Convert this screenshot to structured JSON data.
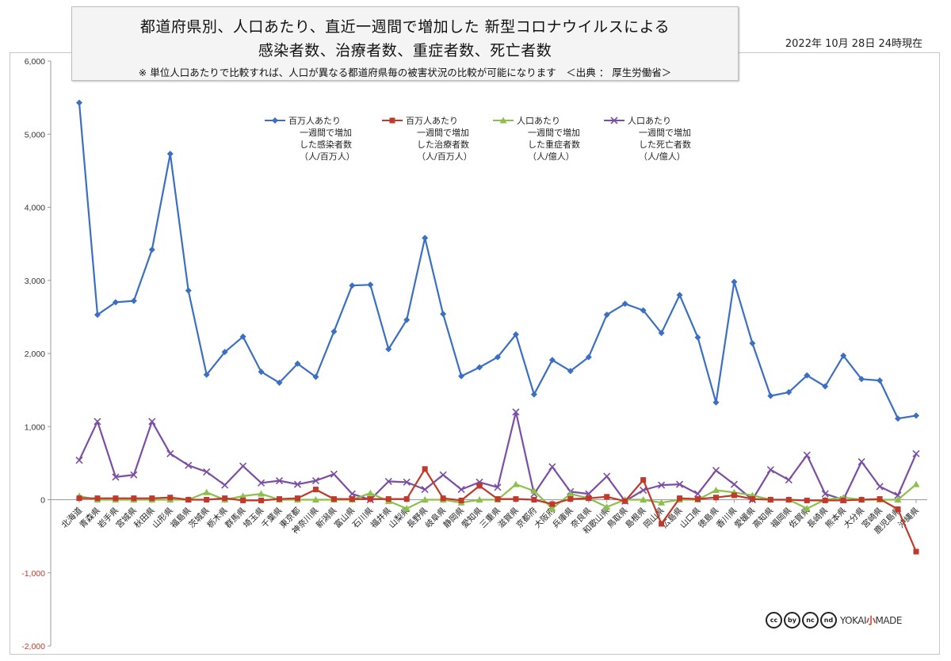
{
  "title": {
    "line1": "都道府県別、人口あたり、直近一週間で増加した 新型コロナウイルスによる",
    "line2": "感染者数、治療者数、重症者数、死亡者数",
    "note": "※ 単位人口あたりで比較すれば、人口が異なる都道府県毎の被害状況の比較が可能になります　＜出典 ： 厚生労働省＞"
  },
  "date_label": "2022年 10月 28日 24時現在",
  "branding": {
    "cc_icons": [
      "cc",
      "by",
      "nc",
      "nd"
    ],
    "brand_left": "YOKAI",
    "brand_mid": "小",
    "brand_right": "MADE"
  },
  "chart_data": {
    "type": "line",
    "y_tick_labels": [
      "6,000",
      "5,000",
      "4,000",
      "3,000",
      "2,000",
      "1,000",
      "0",
      "-1,000",
      "-2,000"
    ],
    "ylim": [
      -2000,
      6000
    ],
    "grid": false,
    "legend_position": "top-center",
    "categories": [
      "北海道",
      "青森県",
      "岩手県",
      "宮城県",
      "秋田県",
      "山形県",
      "福島県",
      "茨城県",
      "栃木県",
      "群馬県",
      "埼玉県",
      "千葉県",
      "東京都",
      "神奈川県",
      "新潟県",
      "富山県",
      "石川県",
      "福井県",
      "山梨県",
      "長野県",
      "岐阜県",
      "静岡県",
      "愛知県",
      "三重県",
      "滋賀県",
      "京都府",
      "大阪府",
      "兵庫県",
      "奈良県",
      "和歌山県",
      "鳥取県",
      "島根県",
      "岡山県",
      "広島県",
      "山口県",
      "徳島県",
      "香川県",
      "愛媛県",
      "高知県",
      "福岡県",
      "佐賀県",
      "長崎県",
      "熊本県",
      "大分県",
      "宮崎県",
      "鹿児島県",
      "沖縄県"
    ],
    "series": [
      {
        "name_lines": [
          "百万人あたり",
          "一週間で増加",
          "した感染者数",
          "（人/百万人）"
        ],
        "color": "#3a6fc4",
        "marker": "diamond",
        "values": [
          5430,
          2530,
          2700,
          2720,
          3420,
          4730,
          2860,
          1710,
          2020,
          2230,
          1750,
          1600,
          1860,
          1680,
          2300,
          2930,
          2940,
          2060,
          2460,
          3580,
          2540,
          1690,
          1810,
          1950,
          2260,
          1440,
          1910,
          1760,
          1950,
          2530,
          2680,
          2590,
          2280,
          2800,
          2220,
          1330,
          2980,
          2140,
          1420,
          1470,
          1700,
          1550,
          1970,
          1650,
          1630,
          1110,
          1150
        ]
      },
      {
        "name_lines": [
          "百万人あたり",
          "一週間で増加",
          "した治療者数",
          "（人/百万人）"
        ],
        "color": "#c0392b",
        "marker": "square",
        "values": [
          20,
          20,
          20,
          20,
          20,
          30,
          0,
          0,
          20,
          -10,
          -10,
          10,
          20,
          140,
          10,
          10,
          10,
          10,
          10,
          420,
          20,
          -10,
          190,
          10,
          10,
          0,
          -60,
          10,
          20,
          40,
          -20,
          270,
          -330,
          20,
          10,
          30,
          60,
          10,
          0,
          0,
          -10,
          -10,
          -10,
          0,
          10,
          -130,
          -710
        ]
      },
      {
        "name_lines": [
          "人口あたり",
          "一週間で増加",
          "した重症者数",
          "（人/億人）"
        ],
        "color": "#8cc04b",
        "marker": "triangle",
        "values": [
          50,
          0,
          0,
          0,
          0,
          0,
          0,
          100,
          0,
          50,
          80,
          0,
          0,
          0,
          0,
          0,
          90,
          -20,
          -120,
          0,
          0,
          -40,
          0,
          0,
          210,
          120,
          -120,
          80,
          20,
          -100,
          0,
          0,
          -40,
          0,
          0,
          130,
          100,
          60,
          0,
          0,
          -120,
          0,
          30,
          0,
          0,
          0,
          210
        ]
      },
      {
        "name_lines": [
          "人口あたり",
          "一週間で増加",
          "した死亡者数",
          "（人/億人）"
        ],
        "color": "#7b4ea3",
        "marker": "cross",
        "values": [
          540,
          1070,
          310,
          340,
          1070,
          630,
          470,
          380,
          200,
          460,
          230,
          260,
          210,
          260,
          350,
          80,
          0,
          250,
          240,
          140,
          340,
          140,
          240,
          170,
          1200,
          80,
          450,
          110,
          80,
          320,
          -20,
          130,
          200,
          210,
          80,
          400,
          210,
          0,
          410,
          270,
          610,
          80,
          0,
          520,
          180,
          60,
          630
        ]
      }
    ]
  }
}
